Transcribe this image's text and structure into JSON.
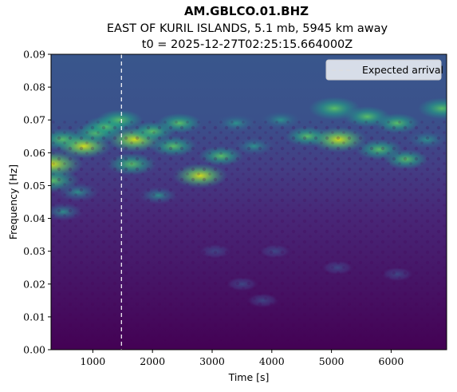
{
  "chart_data": {
    "type": "heatmap",
    "title": "AM.GBLCO.01.BHZ",
    "subtitle_event": "EAST OF KURIL ISLANDS, 5.1 mb, 5945 km away",
    "subtitle_time": "t0 = 2025-12-27T02:25:15.664000Z",
    "xlabel": "Time [s]",
    "ylabel": "Frequency [Hz]",
    "xlim": [
      300,
      6930
    ],
    "ylim": [
      0,
      0.09
    ],
    "x_ticks": [
      1000,
      2000,
      3000,
      4000,
      5000,
      6000
    ],
    "x_tick_labels": [
      "1000",
      "2000",
      "3000",
      "4000",
      "5000",
      "6000"
    ],
    "y_ticks": [
      0,
      0.01,
      0.02,
      0.03,
      0.04,
      0.05,
      0.06,
      0.07,
      0.08,
      0.09
    ],
    "y_tick_labels": [
      "0.00",
      "0.01",
      "0.02",
      "0.03",
      "0.04",
      "0.05",
      "0.06",
      "0.07",
      "0.08",
      "0.09"
    ],
    "colormap": "viridis",
    "expected_arrival": 1480,
    "legend": {
      "label": "Expected arrival",
      "position": "top-right"
    },
    "hotspots": [
      {
        "t": 320,
        "f": 0.0565,
        "value": 0.95
      },
      {
        "t": 330,
        "f": 0.0515,
        "value": 0.7
      },
      {
        "t": 500,
        "f": 0.064,
        "value": 0.6
      },
      {
        "t": 850,
        "f": 0.062,
        "value": 0.75
      },
      {
        "t": 1050,
        "f": 0.066,
        "value": 0.5
      },
      {
        "t": 1230,
        "f": 0.068,
        "value": 0.5
      },
      {
        "t": 1450,
        "f": 0.07,
        "value": 0.5
      },
      {
        "t": 1700,
        "f": 0.064,
        "value": 0.8
      },
      {
        "t": 1650,
        "f": 0.0565,
        "value": 0.6
      },
      {
        "t": 2000,
        "f": 0.0665,
        "value": 0.45
      },
      {
        "t": 2350,
        "f": 0.062,
        "value": 0.5
      },
      {
        "t": 2450,
        "f": 0.069,
        "value": 0.45
      },
      {
        "t": 2800,
        "f": 0.053,
        "value": 0.75
      },
      {
        "t": 3150,
        "f": 0.059,
        "value": 0.45
      },
      {
        "t": 3400,
        "f": 0.069,
        "value": 0.4
      },
      {
        "t": 3700,
        "f": 0.062,
        "value": 0.4
      },
      {
        "t": 4150,
        "f": 0.07,
        "value": 0.4
      },
      {
        "t": 4600,
        "f": 0.065,
        "value": 0.45
      },
      {
        "t": 5050,
        "f": 0.0735,
        "value": 0.65
      },
      {
        "t": 5120,
        "f": 0.064,
        "value": 0.8
      },
      {
        "t": 5600,
        "f": 0.071,
        "value": 0.5
      },
      {
        "t": 5800,
        "f": 0.061,
        "value": 0.5
      },
      {
        "t": 6100,
        "f": 0.069,
        "value": 0.45
      },
      {
        "t": 6250,
        "f": 0.058,
        "value": 0.45
      },
      {
        "t": 6600,
        "f": 0.064,
        "value": 0.4
      },
      {
        "t": 6850,
        "f": 0.0735,
        "value": 0.55
      },
      {
        "t": 500,
        "f": 0.042,
        "value": 0.35
      },
      {
        "t": 750,
        "f": 0.048,
        "value": 0.4
      },
      {
        "t": 2100,
        "f": 0.047,
        "value": 0.3
      },
      {
        "t": 3050,
        "f": 0.03,
        "value": 0.25
      },
      {
        "t": 3500,
        "f": 0.02,
        "value": 0.22
      },
      {
        "t": 3850,
        "f": 0.015,
        "value": 0.22
      },
      {
        "t": 4050,
        "f": 0.03,
        "value": 0.22
      },
      {
        "t": 5100,
        "f": 0.025,
        "value": 0.22
      },
      {
        "t": 6100,
        "f": 0.023,
        "value": 0.22
      }
    ]
  }
}
